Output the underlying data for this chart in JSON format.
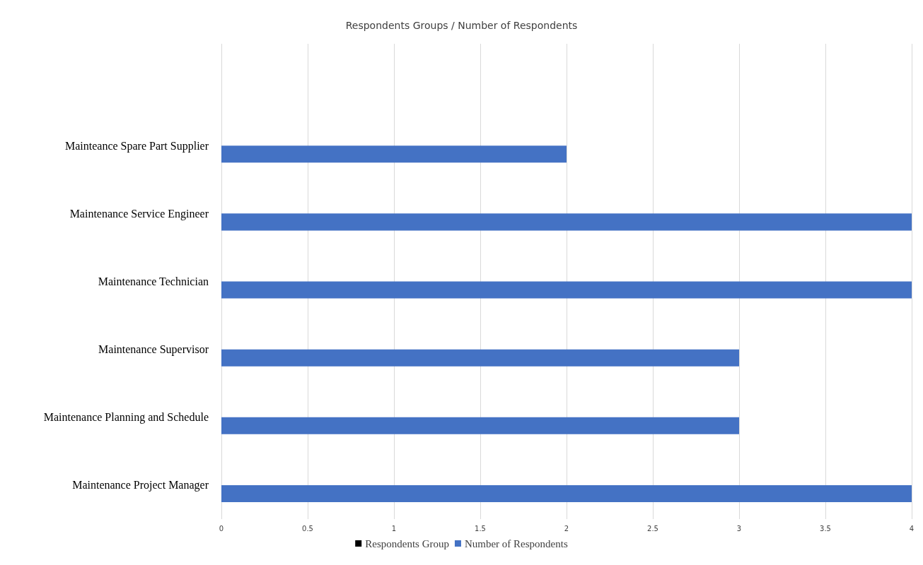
{
  "chart_data": {
    "type": "bar",
    "orientation": "horizontal",
    "title": "Respondents Groups / Number of Respondents",
    "categories": [
      null,
      "Mainteance Spare Part Supplier",
      "Maintenance Service Engineer",
      "Maintenance Technician",
      "Maintenance Supervisor",
      "Maintenance Planning and Schedule",
      "Maintenance Project Manager"
    ],
    "series": [
      {
        "name": "Respondents Group",
        "color": "#000000",
        "values": [
          null,
          null,
          null,
          null,
          null,
          null,
          null
        ]
      },
      {
        "name": "Number of Respondents",
        "color": "#4472c4",
        "values": [
          null,
          2,
          4,
          4,
          3,
          3,
          4
        ]
      }
    ],
    "xlim": [
      0,
      4
    ],
    "xticks": [
      0,
      0.5,
      1,
      1.5,
      2,
      2.5,
      3,
      3.5,
      4
    ],
    "grid": "x",
    "legend": "bottom"
  }
}
